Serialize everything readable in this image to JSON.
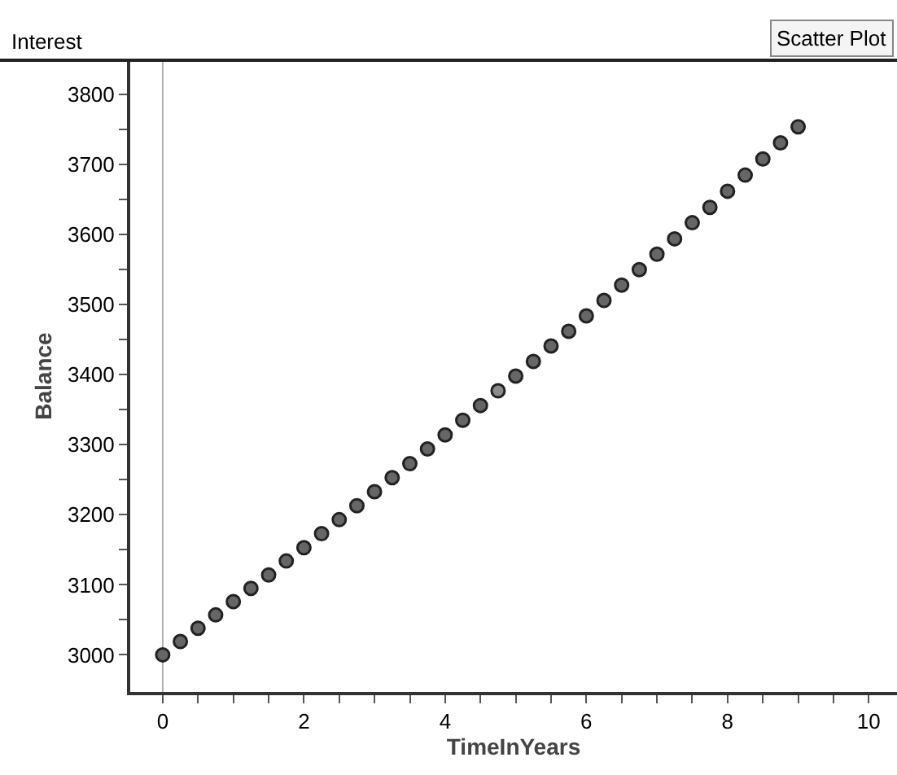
{
  "chart_data": {
    "type": "scatter",
    "title": "Interest",
    "xlabel": "TimeInYears",
    "ylabel": "Balance",
    "annotations": [
      "Scatter Plot"
    ],
    "x": [
      0,
      0.25,
      0.5,
      0.75,
      1,
      1.25,
      1.5,
      1.75,
      2,
      2.25,
      2.5,
      2.75,
      3,
      3.25,
      3.5,
      3.75,
      4,
      4.25,
      4.5,
      4.75,
      5,
      5.25,
      5.5,
      5.75,
      6,
      6.25,
      6.5,
      6.75,
      7,
      7.25,
      7.5,
      7.75,
      8,
      8.25,
      8.5,
      8.75,
      9
    ],
    "values": [
      3000,
      3019,
      3038,
      3057,
      3076,
      3095,
      3114,
      3134,
      3153,
      3173,
      3193,
      3213,
      3233,
      3253,
      3273,
      3294,
      3314,
      3335,
      3356,
      3377,
      3398,
      3419,
      3441,
      3462,
      3484,
      3506,
      3528,
      3550,
      3572,
      3594,
      3617,
      3639,
      3662,
      3685,
      3708,
      3731,
      3754
    ],
    "colors": [
      "#666666",
      "#666666",
      "#666666",
      "#666666",
      "#666666",
      "#666666",
      "#666666",
      "#666666",
      "#666666",
      "#666666",
      "#666666",
      "#666666",
      "#666666",
      "#666666",
      "#666666",
      "#666666",
      "#666666",
      "#666666",
      "#666666",
      "#8c8c8c",
      "#666666",
      "#666666",
      "#666666",
      "#666666",
      "#666666",
      "#666666",
      "#666666",
      "#666666",
      "#666666",
      "#666666",
      "#666666",
      "#666666",
      "#666666",
      "#666666",
      "#666666",
      "#666666",
      "#666666"
    ],
    "marker": "circle",
    "xlim": [
      -0.46,
      10.4
    ],
    "ylim": [
      2947,
      3849
    ],
    "xticks": [
      0,
      {
        "value": 0.5,
        "label": null
      },
      {
        "value": 1,
        "label": null
      },
      {
        "value": 1.5,
        "label": null
      },
      2,
      {
        "value": 2.5,
        "label": null
      },
      {
        "value": 3,
        "label": null
      },
      {
        "value": 3.5,
        "label": null
      },
      4,
      {
        "value": 4.5,
        "label": null
      },
      {
        "value": 5,
        "label": null
      },
      {
        "value": 5.5,
        "label": null
      },
      6,
      {
        "value": 6.5,
        "label": null
      },
      {
        "value": 7,
        "label": null
      },
      {
        "value": 7.5,
        "label": null
      },
      8,
      {
        "value": 8.5,
        "label": null
      },
      {
        "value": 9,
        "label": null
      },
      {
        "value": 9.5,
        "label": null
      },
      10
    ],
    "yticks": [
      3000,
      {
        "value": 3050,
        "label": null
      },
      3100,
      {
        "value": 3150,
        "label": null
      },
      3200,
      {
        "value": 3250,
        "label": null
      },
      3300,
      {
        "value": 3350,
        "label": null
      },
      3400,
      {
        "value": 3450,
        "label": null
      },
      3500,
      {
        "value": 3550,
        "label": null
      },
      3600,
      {
        "value": 3650,
        "label": null
      },
      3700,
      {
        "value": 3750,
        "label": null
      },
      3800
    ],
    "ref_lines": [
      {
        "axis": "x",
        "value": 0,
        "color": "#b0b0b0"
      }
    ],
    "grid": false,
    "legend": false
  }
}
